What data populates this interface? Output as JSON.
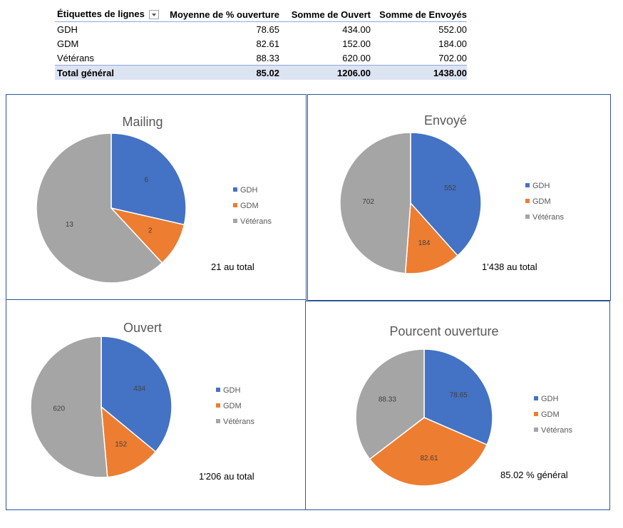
{
  "pivot": {
    "headers": [
      "Étiquettes de lignes",
      "Moyenne de % ouverture",
      "Somme de Ouvert",
      "Somme de Envoyés"
    ],
    "rows": [
      [
        "GDH",
        "78.65",
        "434.00",
        "552.00"
      ],
      [
        "GDM",
        "82.61",
        "152.00",
        "184.00"
      ],
      [
        "Vétérans",
        "88.33",
        "620.00",
        "702.00"
      ]
    ],
    "total": [
      "Total général",
      "85.02",
      "1206.00",
      "1438.00"
    ]
  },
  "chart_data": [
    {
      "type": "pie",
      "title": "Mailing",
      "categories": [
        "GDH",
        "GDM",
        "Vétérans"
      ],
      "values": [
        6,
        2,
        13
      ],
      "labels": [
        "6",
        "2",
        "13"
      ],
      "legend": "right",
      "note": "21 au total"
    },
    {
      "type": "pie",
      "title": "Envoyé",
      "categories": [
        "GDH",
        "GDM",
        "Vétérans"
      ],
      "values": [
        552,
        184,
        702
      ],
      "labels": [
        "552",
        "184",
        "702"
      ],
      "legend": "right",
      "note": "1'438 au total"
    },
    {
      "type": "pie",
      "title": "Ouvert",
      "categories": [
        "GDH",
        "GDM",
        "Vétérans"
      ],
      "values": [
        434,
        152,
        620
      ],
      "labels": [
        "434",
        "152",
        "620"
      ],
      "legend": "right",
      "note": "1'206 au total"
    },
    {
      "type": "pie",
      "title": "Pourcent ouverture",
      "categories": [
        "GDH",
        "GDM",
        "Vétérans"
      ],
      "values": [
        78.65,
        82.61,
        88.33
      ],
      "labels": [
        "78.65",
        "82.61",
        "88.33"
      ],
      "legend": "right",
      "note": "85.02 % général"
    }
  ],
  "colors": {
    "GDH": "#4472c4",
    "GDM": "#ed7d31",
    "Vétérans": "#a5a5a5"
  }
}
